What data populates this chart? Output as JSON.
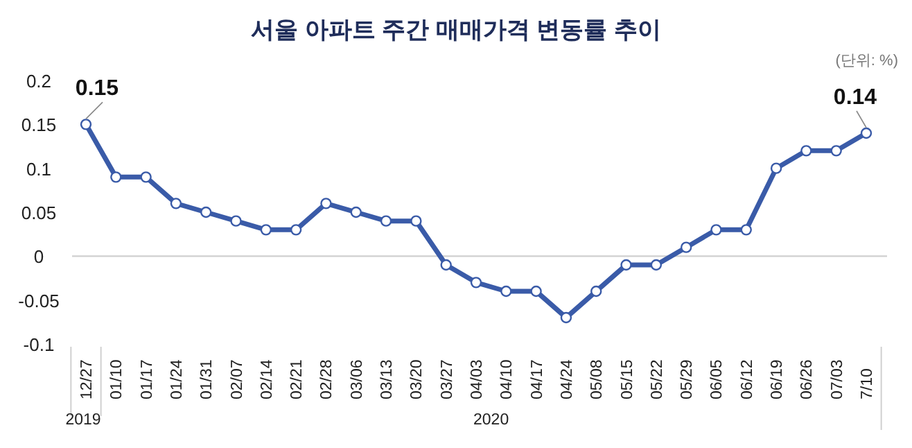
{
  "chart_data": {
    "type": "line",
    "title": "서울 아파트 주간 매매가격 변동률 추이",
    "annotations": [
      "(단위: %)",
      "2019",
      "2020"
    ],
    "categories": [
      "12/27",
      "01/10",
      "01/17",
      "01/24",
      "01/31",
      "02/07",
      "02/14",
      "02/21",
      "02/28",
      "03/06",
      "03/13",
      "03/20",
      "03/27",
      "04/03",
      "04/10",
      "04/17",
      "04/24",
      "05/08",
      "05/15",
      "05/22",
      "05/29",
      "06/05",
      "06/12",
      "06/19",
      "06/26",
      "07/03",
      "7/10"
    ],
    "values": [
      0.15,
      0.09,
      0.09,
      0.06,
      0.05,
      0.04,
      0.03,
      0.03,
      0.06,
      0.05,
      0.04,
      0.04,
      -0.01,
      -0.03,
      -0.04,
      -0.04,
      -0.07,
      -0.04,
      -0.01,
      -0.01,
      0.01,
      0.03,
      0.03,
      0.1,
      0.12,
      0.12,
      0.14
    ],
    "value_labels": [
      "0.15",
      null,
      null,
      null,
      null,
      null,
      null,
      null,
      null,
      null,
      null,
      null,
      null,
      null,
      null,
      null,
      null,
      null,
      null,
      null,
      null,
      null,
      null,
      null,
      null,
      null,
      "0.14"
    ],
    "color": "#3a5ba8",
    "marker": "circle",
    "line_style": "solid",
    "ylim": [
      -0.1,
      0.2
    ],
    "yticks": [
      0.2,
      0.15,
      0.1,
      0.05,
      0,
      -0.05,
      -0.1
    ]
  }
}
